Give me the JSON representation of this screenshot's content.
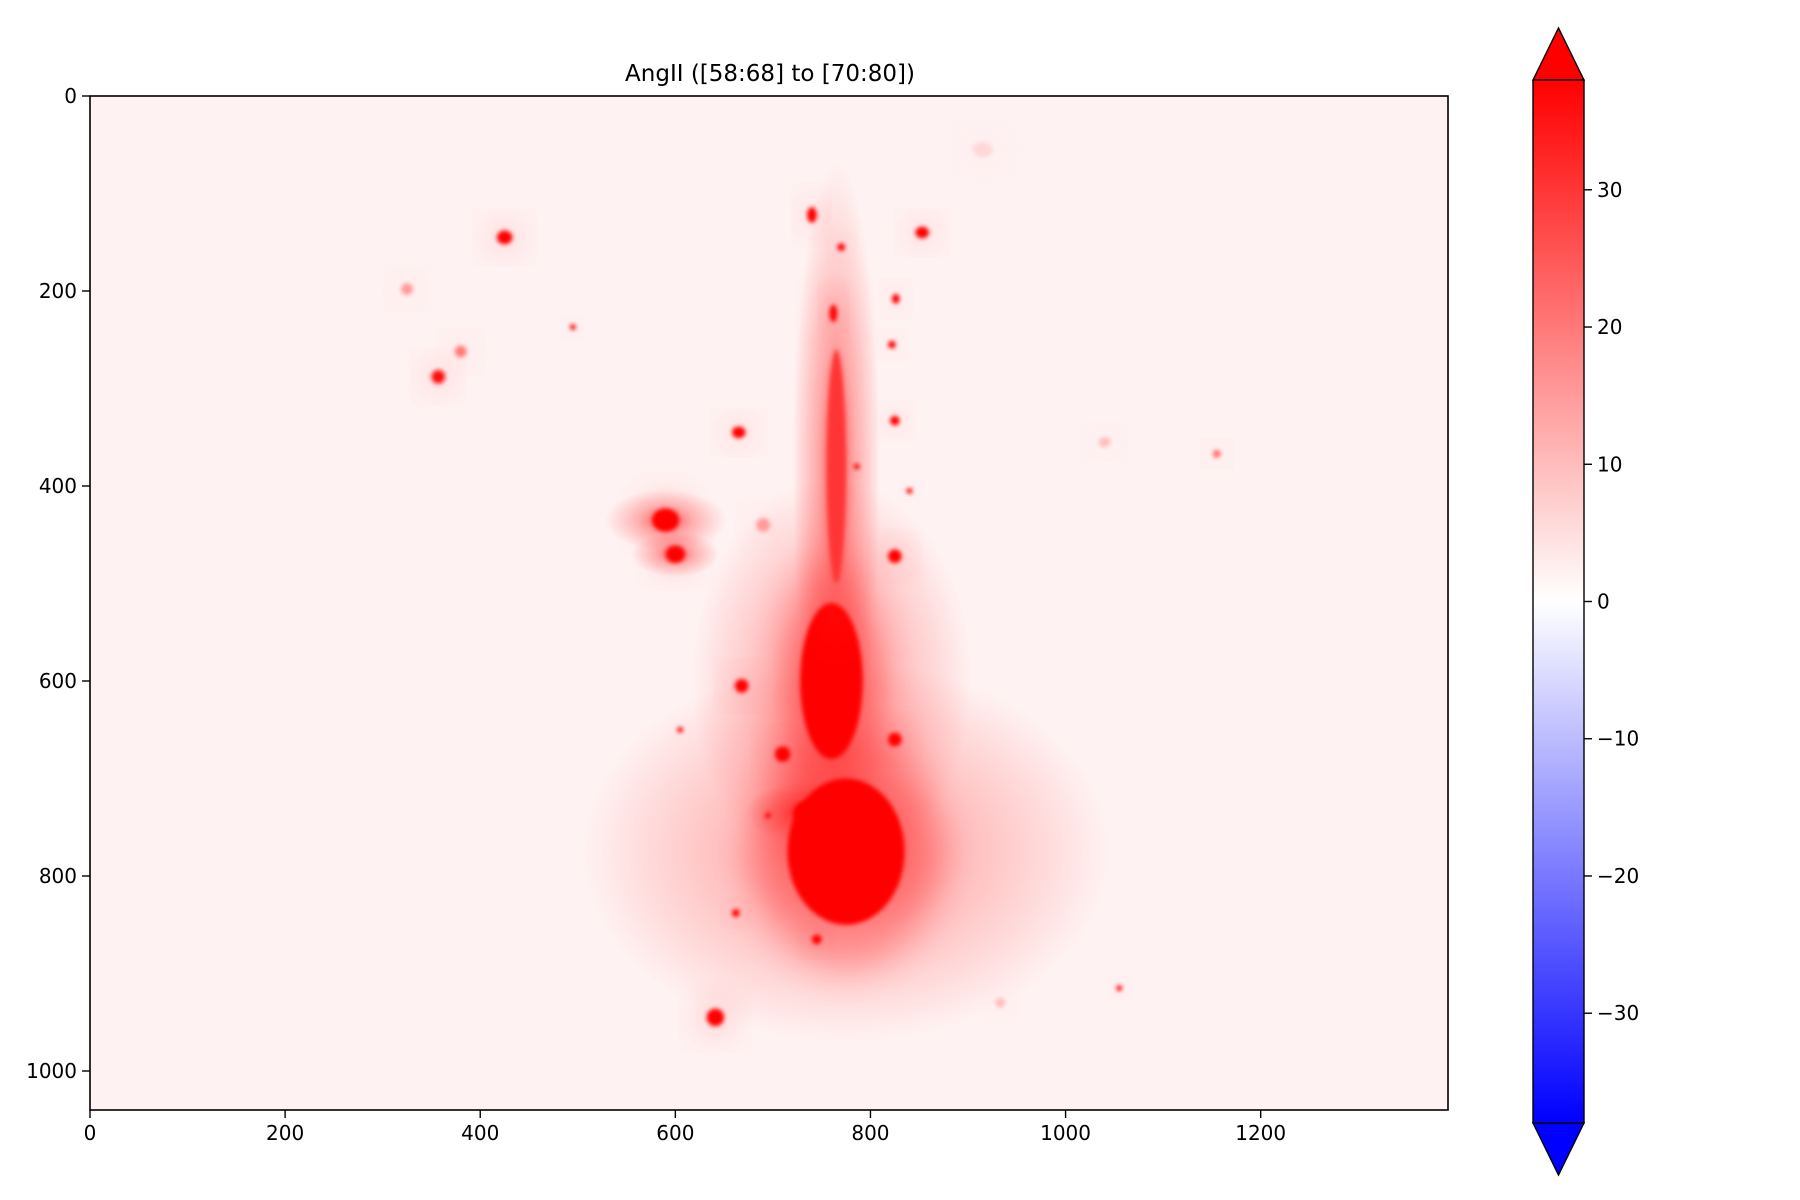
{
  "chart_data": {
    "type": "heatmap",
    "title": "AngII ([58:68] to [70:80])",
    "xlabel": "",
    "ylabel": "",
    "xlim": [
      0,
      1392
    ],
    "ylim": [
      1040,
      0
    ],
    "y_inverted": true,
    "x_ticks": [
      0,
      200,
      400,
      600,
      800,
      1000,
      1200
    ],
    "y_ticks": [
      0,
      200,
      400,
      600,
      800,
      1000
    ],
    "colormap": "bwr",
    "colorbar": {
      "vmin": -38,
      "vmax": 38,
      "extend": "both",
      "ticks": [
        -30,
        -20,
        -10,
        0,
        10,
        20,
        30
      ],
      "tick_labels": [
        "−30",
        "−20",
        "−10",
        "0",
        "10",
        "20",
        "30"
      ]
    },
    "colors": {
      "positive": "#ff0000",
      "negative": "#0000ff",
      "zero": "#ffffff"
    },
    "background_value": 2,
    "features": [
      {
        "kind": "blob",
        "x": 775,
        "y": 775,
        "rx": 60,
        "ry": 75,
        "value": 38
      },
      {
        "kind": "blob",
        "x": 760,
        "y": 600,
        "rx": 32,
        "ry": 80,
        "value": 38
      },
      {
        "kind": "blob",
        "x": 735,
        "y": 735,
        "rx": 14,
        "ry": 12,
        "value": 38
      },
      {
        "kind": "blob",
        "x": 765,
        "y": 380,
        "rx": 10,
        "ry": 120,
        "value": 30
      },
      {
        "kind": "blob",
        "x": 590,
        "y": 435,
        "rx": 14,
        "ry": 12,
        "value": 38
      },
      {
        "kind": "blob",
        "x": 600,
        "y": 470,
        "rx": 10,
        "ry": 9,
        "value": 38
      },
      {
        "kind": "blob",
        "x": 425,
        "y": 145,
        "rx": 8,
        "ry": 7,
        "value": 38
      },
      {
        "kind": "blob",
        "x": 357,
        "y": 288,
        "rx": 7,
        "ry": 7,
        "value": 36
      },
      {
        "kind": "blob",
        "x": 380,
        "y": 262,
        "rx": 6,
        "ry": 6,
        "value": 20
      },
      {
        "kind": "blob",
        "x": 325,
        "y": 198,
        "rx": 6,
        "ry": 6,
        "value": 15
      },
      {
        "kind": "blob",
        "x": 853,
        "y": 140,
        "rx": 7,
        "ry": 6,
        "value": 38
      },
      {
        "kind": "blob",
        "x": 740,
        "y": 122,
        "rx": 5,
        "ry": 8,
        "value": 38
      },
      {
        "kind": "blob",
        "x": 665,
        "y": 345,
        "rx": 7,
        "ry": 6,
        "value": 38
      },
      {
        "kind": "blob",
        "x": 825,
        "y": 472,
        "rx": 7,
        "ry": 7,
        "value": 38
      },
      {
        "kind": "blob",
        "x": 668,
        "y": 605,
        "rx": 7,
        "ry": 7,
        "value": 38
      },
      {
        "kind": "blob",
        "x": 825,
        "y": 660,
        "rx": 7,
        "ry": 7,
        "value": 38
      },
      {
        "kind": "blob",
        "x": 641,
        "y": 945,
        "rx": 9,
        "ry": 9,
        "value": 38
      },
      {
        "kind": "blob",
        "x": 690,
        "y": 440,
        "rx": 7,
        "ry": 7,
        "value": 15
      },
      {
        "kind": "blob",
        "x": 825,
        "y": 333,
        "rx": 5,
        "ry": 5,
        "value": 38
      },
      {
        "kind": "blob",
        "x": 822,
        "y": 255,
        "rx": 4,
        "ry": 4,
        "value": 38
      },
      {
        "kind": "blob",
        "x": 826,
        "y": 208,
        "rx": 4,
        "ry": 5,
        "value": 38
      },
      {
        "kind": "blob",
        "x": 762,
        "y": 223,
        "rx": 4,
        "ry": 9,
        "value": 38
      },
      {
        "kind": "blob",
        "x": 770,
        "y": 155,
        "rx": 4,
        "ry": 4,
        "value": 38
      },
      {
        "kind": "blob",
        "x": 710,
        "y": 675,
        "rx": 8,
        "ry": 8,
        "value": 38
      },
      {
        "kind": "blob",
        "x": 745,
        "y": 865,
        "rx": 5,
        "ry": 5,
        "value": 38
      },
      {
        "kind": "blob",
        "x": 662,
        "y": 838,
        "rx": 4,
        "ry": 4,
        "value": 38
      },
      {
        "kind": "blob",
        "x": 1055,
        "y": 915,
        "rx": 3,
        "ry": 3,
        "value": 38
      },
      {
        "kind": "blob",
        "x": 1155,
        "y": 367,
        "rx": 4,
        "ry": 4,
        "value": 22
      },
      {
        "kind": "blob",
        "x": 1040,
        "y": 355,
        "rx": 6,
        "ry": 5,
        "value": 10
      },
      {
        "kind": "blob",
        "x": 495,
        "y": 237,
        "rx": 3,
        "ry": 3,
        "value": 38
      },
      {
        "kind": "blob",
        "x": 605,
        "y": 650,
        "rx": 3,
        "ry": 3,
        "value": 38
      },
      {
        "kind": "blob",
        "x": 695,
        "y": 738,
        "rx": 3,
        "ry": 3,
        "value": 38
      },
      {
        "kind": "blob",
        "x": 840,
        "y": 405,
        "rx": 3,
        "ry": 3,
        "value": 38
      },
      {
        "kind": "blob",
        "x": 786,
        "y": 380,
        "rx": 3,
        "ry": 3,
        "value": 38
      },
      {
        "kind": "blob",
        "x": 933,
        "y": 930,
        "rx": 5,
        "ry": 5,
        "value": 10
      },
      {
        "kind": "blob",
        "x": 915,
        "y": 55,
        "rx": 10,
        "ry": 8,
        "value": 6
      }
    ]
  }
}
